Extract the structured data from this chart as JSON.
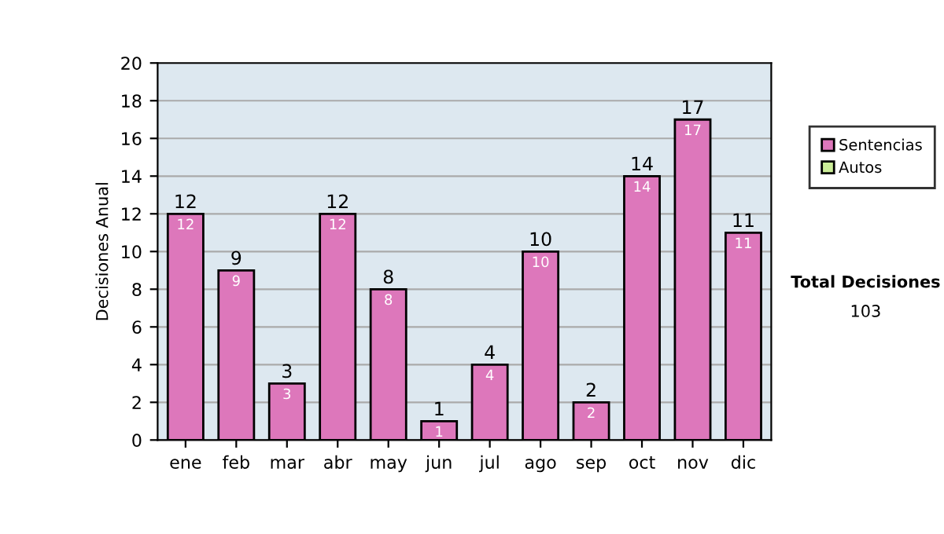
{
  "chart_data": {
    "type": "bar",
    "stacked": true,
    "ylabel": "Decisiones Anual",
    "categories": [
      "ene",
      "feb",
      "mar",
      "abr",
      "may",
      "jun",
      "jul",
      "ago",
      "sep",
      "oct",
      "nov",
      "dic"
    ],
    "series": [
      {
        "name": "Sentencias",
        "color": "#dd77bb",
        "values": [
          12,
          9,
          3,
          12,
          8,
          1,
          4,
          10,
          2,
          14,
          17,
          11
        ],
        "value_labels": [
          "12",
          "9",
          "3",
          "12",
          "8",
          "1",
          "4",
          "10",
          "2",
          "14",
          "17",
          "11"
        ]
      },
      {
        "name": "Autos",
        "color": "#ccee99",
        "values": [
          null,
          null,
          null,
          null,
          null,
          null,
          null,
          null,
          null,
          null,
          null,
          null
        ]
      }
    ],
    "totals": [
      "12",
      "9",
      "3",
      "12",
      "8",
      "1",
      "4",
      "10",
      "2",
      "14",
      "17",
      "11"
    ],
    "ylim": [
      0,
      20
    ],
    "yticks": [
      0,
      2,
      4,
      6,
      8,
      10,
      12,
      14,
      16,
      18,
      20
    ],
    "grid": "y",
    "legend": "right",
    "annotations": [
      "Total Decisiones",
      "103"
    ]
  }
}
